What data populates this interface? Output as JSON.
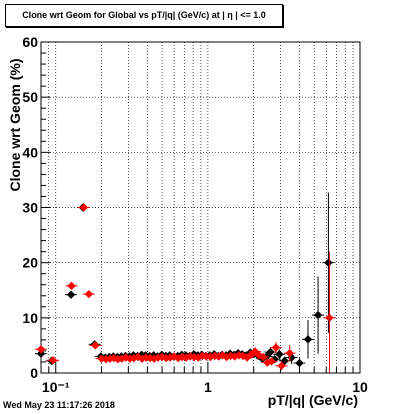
{
  "chart_data": {
    "type": "scatter",
    "title": "Clone wrt Geom for Global vs pT/|q| (GeV/c) at | η | <= 1.0",
    "xlabel": "pT/|q| (GeV/c)",
    "ylabel": "Clone wrt Geom (%)",
    "x_scale": "log",
    "xlim": [
      0.08,
      10
    ],
    "ylim": [
      0,
      60
    ],
    "x_tick_labels": [
      "10⁻¹",
      "1",
      "10"
    ],
    "y_tick_labels": [
      "0",
      "10",
      "20",
      "30",
      "40",
      "50",
      "60"
    ],
    "grid": true,
    "series": [
      {
        "color": "#000000",
        "x": [
          0.08,
          0.094,
          0.126,
          0.151,
          0.18,
          0.198,
          0.212,
          0.225,
          0.239,
          0.254,
          0.27,
          0.287,
          0.305,
          0.324,
          0.345,
          0.367,
          0.39,
          0.414,
          0.44,
          0.468,
          0.497,
          0.528,
          0.561,
          0.597,
          0.634,
          0.674,
          0.716,
          0.761,
          0.809,
          0.86,
          0.914,
          0.971,
          1.03,
          1.1,
          1.17,
          1.24,
          1.32,
          1.4,
          1.49,
          1.58,
          1.68,
          1.79,
          1.9,
          2.02,
          2.15,
          2.28,
          2.43,
          2.58,
          2.75,
          2.95,
          3.2,
          3.55,
          4.0,
          4.55,
          5.3,
          6.2
        ],
        "y": [
          3.5,
          2.2,
          14.2,
          30.0,
          5.2,
          3.0,
          2.8,
          2.9,
          3.0,
          2.9,
          3.0,
          3.1,
          3.0,
          3.2,
          3.1,
          3.3,
          3.2,
          3.1,
          3.2,
          3.0,
          3.3,
          3.1,
          3.2,
          3.0,
          3.1,
          3.3,
          3.2,
          3.1,
          3.4,
          3.2,
          3.3,
          3.1,
          3.2,
          3.4,
          3.1,
          3.3,
          3.2,
          3.5,
          3.3,
          3.6,
          3.4,
          3.2,
          3.7,
          3.5,
          3.1,
          2.6,
          3.0,
          3.8,
          2.5,
          3.4,
          2.2,
          2.8,
          1.8,
          6.1,
          10.5,
          20.0
        ],
        "err": [
          0,
          0,
          0,
          0,
          0,
          0,
          0,
          0,
          0,
          0,
          0,
          0,
          0,
          0,
          0,
          0,
          0,
          0,
          0,
          0,
          0,
          0,
          0,
          0,
          0,
          0,
          0,
          0,
          0,
          0,
          0,
          0,
          0,
          0,
          0,
          0,
          0,
          0,
          0,
          0,
          0,
          0,
          0,
          0,
          0,
          0.5,
          0.6,
          0.8,
          0.6,
          0.9,
          0.8,
          1.2,
          1.1,
          3.5,
          7.0,
          12.7
        ]
      },
      {
        "color": "#ff0000",
        "x": [
          0.08,
          0.096,
          0.127,
          0.153,
          0.165,
          0.182,
          0.2,
          0.214,
          0.227,
          0.241,
          0.256,
          0.272,
          0.289,
          0.307,
          0.326,
          0.347,
          0.369,
          0.392,
          0.417,
          0.443,
          0.471,
          0.5,
          0.531,
          0.565,
          0.6,
          0.638,
          0.678,
          0.72,
          0.766,
          0.814,
          0.865,
          0.92,
          0.977,
          1.04,
          1.11,
          1.18,
          1.25,
          1.33,
          1.41,
          1.5,
          1.6,
          1.7,
          1.81,
          1.92,
          2.04,
          2.17,
          2.31,
          2.46,
          2.62,
          2.8,
          3.05,
          3.45,
          6.3
        ],
        "y": [
          4.3,
          2.3,
          15.8,
          30.0,
          14.3,
          5.0,
          2.6,
          2.5,
          2.6,
          2.7,
          2.5,
          2.6,
          2.8,
          2.6,
          2.7,
          2.9,
          2.6,
          2.8,
          2.7,
          2.6,
          2.8,
          2.9,
          2.7,
          2.8,
          3.0,
          2.7,
          2.9,
          2.8,
          3.0,
          2.9,
          2.8,
          3.1,
          3.0,
          2.9,
          3.1,
          3.0,
          3.2,
          2.9,
          3.1,
          3.0,
          3.2,
          3.1,
          2.8,
          3.3,
          3.9,
          3.2,
          2.9,
          1.9,
          2.1,
          4.6,
          1.3,
          3.6,
          10.0
        ],
        "err": [
          0,
          0,
          0,
          0,
          0,
          0,
          0,
          0,
          0,
          0,
          0,
          0,
          0,
          0,
          0,
          0,
          0,
          0,
          0,
          0,
          0,
          0,
          0,
          0,
          0,
          0,
          0,
          0,
          0,
          0,
          0,
          0,
          0,
          0,
          0,
          0,
          0,
          0,
          0,
          0,
          0,
          0,
          0,
          0,
          0.4,
          0.5,
          0.6,
          0.5,
          0.6,
          1.0,
          0.8,
          1.5,
          12.0
        ]
      }
    ]
  },
  "footer": {
    "timestamp": "Wed May 23 11:17:26 2018"
  }
}
